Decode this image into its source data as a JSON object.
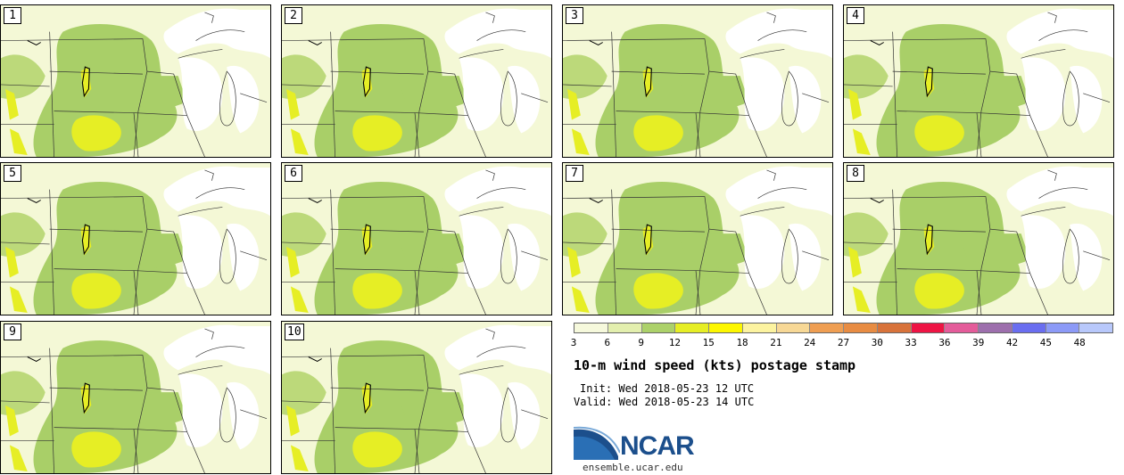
{
  "panels": [
    "1",
    "2",
    "3",
    "4",
    "5",
    "6",
    "7",
    "8",
    "9",
    "10"
  ],
  "colorbar": {
    "ticks": [
      "3",
      "6",
      "9",
      "12",
      "15",
      "18",
      "21",
      "24",
      "27",
      "30",
      "33",
      "36",
      "39",
      "42",
      "45",
      "48"
    ],
    "colors": [
      "#f6f9dc",
      "#e3efae",
      "#acd16a",
      "#e6ee25",
      "#fdf700",
      "#fcf3a0",
      "#f7d896",
      "#ef9e52",
      "#e88c43",
      "#d8733b",
      "#ee1444",
      "#e45c9a",
      "#9d6fad",
      "#6a6ef0",
      "#8c9af7",
      "#b8c8fb"
    ]
  },
  "title": "10-m wind speed (kts) postage stamp",
  "init": "Init: Wed 2018-05-23 12 UTC",
  "valid": "Valid: Wed 2018-05-23 14 UTC",
  "logo": {
    "text": "NCAR",
    "url": "ensemble.ucar.edu",
    "color": "#1c4f8c"
  }
}
